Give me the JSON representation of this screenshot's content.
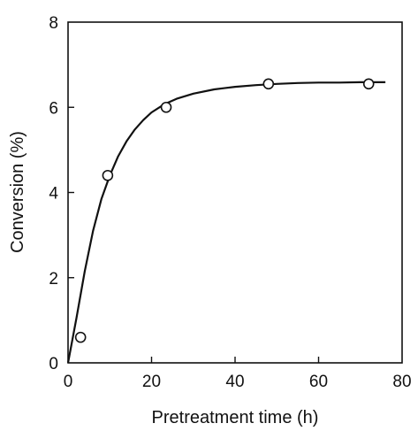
{
  "chart_data": {
    "type": "scatter",
    "title": "",
    "xlabel": "Pretreatment time (h)",
    "ylabel": "Conversion (%)",
    "xlim": [
      0,
      80
    ],
    "ylim": [
      0,
      8
    ],
    "xticks": [
      0,
      20,
      40,
      60,
      80
    ],
    "yticks": [
      0,
      2,
      4,
      6,
      8
    ],
    "grid": false,
    "legend": "none",
    "series": [
      {
        "style": "markers",
        "marker": "open-circle",
        "x": [
          3,
          9.5,
          23.5,
          48,
          72
        ],
        "y": [
          0.6,
          4.4,
          6.0,
          6.55,
          6.55
        ]
      },
      {
        "style": "smooth-line",
        "x": [
          0,
          2,
          4,
          6,
          8,
          10,
          12,
          14,
          16,
          18,
          20,
          23,
          26,
          30,
          35,
          40,
          45,
          50,
          55,
          60,
          65,
          70,
          75,
          76
        ],
        "y": [
          0,
          1.05,
          2.15,
          3.1,
          3.85,
          4.4,
          4.85,
          5.2,
          5.48,
          5.7,
          5.88,
          6.07,
          6.2,
          6.32,
          6.42,
          6.48,
          6.52,
          6.55,
          6.57,
          6.58,
          6.58,
          6.59,
          6.59,
          6.59
        ]
      }
    ],
    "colors": {
      "line": "#111111",
      "marker_fill": "#ffffff",
      "marker_stroke": "#111111"
    }
  }
}
